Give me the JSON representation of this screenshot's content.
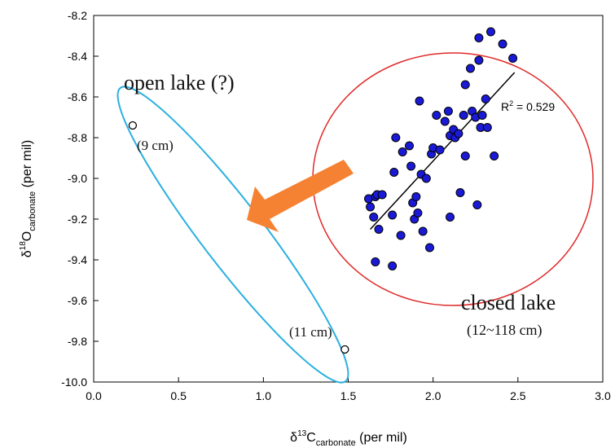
{
  "chart_data": {
    "type": "scatter",
    "xlabel": {
      "prefix": "δ",
      "sup": "13",
      "main": "C",
      "sub": "carbonate",
      "unit": " (per mil)"
    },
    "ylabel": {
      "prefix": "δ",
      "sup": "18",
      "main": "O",
      "sub": "carbonate",
      "unit": " (per mil)"
    },
    "xlim": [
      0.0,
      3.0
    ],
    "ylim": [
      -10.0,
      -8.2
    ],
    "x_ticks": [
      "0.0",
      "0.5",
      "1.0",
      "1.5",
      "2.0",
      "2.5",
      "3.0"
    ],
    "y_ticks": [
      "-8.2",
      "-8.4",
      "-8.6",
      "-8.8",
      "-9.0",
      "-9.2",
      "-9.4",
      "-9.6",
      "-9.8",
      "-10.0"
    ],
    "grid": false,
    "series": [
      {
        "marker": "filled",
        "color": "#1a1ad6",
        "points": [
          [
            1.62,
            -9.1
          ],
          [
            1.63,
            -9.14
          ],
          [
            1.65,
            -9.19
          ],
          [
            1.66,
            -9.09
          ],
          [
            1.68,
            -9.25
          ],
          [
            1.67,
            -9.08
          ],
          [
            1.7,
            -9.08
          ],
          [
            1.66,
            -9.41
          ],
          [
            1.76,
            -9.43
          ],
          [
            1.76,
            -9.18
          ],
          [
            1.77,
            -8.97
          ],
          [
            1.78,
            -8.8
          ],
          [
            1.81,
            -9.28
          ],
          [
            1.82,
            -8.87
          ],
          [
            1.86,
            -8.84
          ],
          [
            1.87,
            -8.94
          ],
          [
            1.88,
            -9.12
          ],
          [
            1.89,
            -9.2
          ],
          [
            1.9,
            -9.09
          ],
          [
            1.91,
            -9.17
          ],
          [
            1.92,
            -8.62
          ],
          [
            1.93,
            -8.98
          ],
          [
            1.94,
            -9.26
          ],
          [
            1.96,
            -9.0
          ],
          [
            1.98,
            -9.34
          ],
          [
            1.99,
            -8.88
          ],
          [
            2.0,
            -8.85
          ],
          [
            2.02,
            -8.69
          ],
          [
            2.04,
            -8.86
          ],
          [
            2.07,
            -8.72
          ],
          [
            2.09,
            -8.67
          ],
          [
            2.1,
            -8.79
          ],
          [
            2.1,
            -9.19
          ],
          [
            2.12,
            -8.76
          ],
          [
            2.13,
            -8.8
          ],
          [
            2.15,
            -8.78
          ],
          [
            2.16,
            -9.07
          ],
          [
            2.18,
            -8.69
          ],
          [
            2.19,
            -8.89
          ],
          [
            2.19,
            -8.54
          ],
          [
            2.22,
            -8.46
          ],
          [
            2.23,
            -8.67
          ],
          [
            2.25,
            -8.7
          ],
          [
            2.26,
            -9.13
          ],
          [
            2.27,
            -8.42
          ],
          [
            2.27,
            -8.31
          ],
          [
            2.28,
            -8.75
          ],
          [
            2.29,
            -8.69
          ],
          [
            2.31,
            -8.61
          ],
          [
            2.32,
            -8.75
          ],
          [
            2.34,
            -8.28
          ],
          [
            2.36,
            -8.89
          ],
          [
            2.41,
            -8.34
          ],
          [
            2.47,
            -8.41
          ]
        ]
      },
      {
        "marker": "open",
        "color": "#000000",
        "points": [
          [
            0.23,
            -8.74
          ],
          [
            1.48,
            -9.84
          ]
        ]
      }
    ],
    "trendline": {
      "x": [
        1.63,
        2.48
      ],
      "y": [
        -9.25,
        -8.48
      ]
    },
    "annotations": {
      "r2_prefix": "R",
      "r2_sup": "2",
      "r2_value": " = 0.529",
      "open_lake": "open lake (?)",
      "label_9cm": "(9 cm)",
      "label_11cm": "(11 cm)",
      "closed_lake": "closed lake",
      "closed_range": "(12~118 cm)"
    },
    "colors": {
      "filled_marker": "#1a1ad6",
      "open_ellipse": "#2bb0e0",
      "closed_ellipse": "#e02a2a",
      "arrow": "#f58233"
    }
  }
}
